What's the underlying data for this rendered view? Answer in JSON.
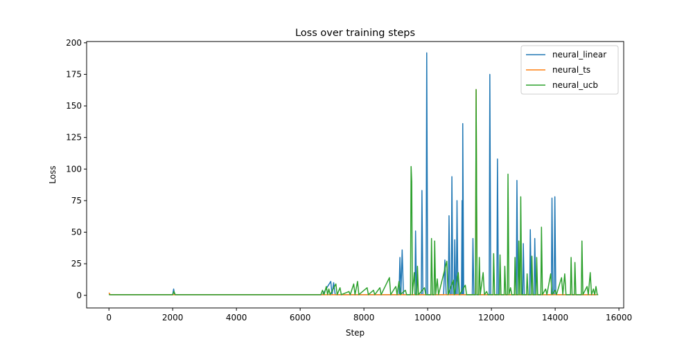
{
  "chart_data": {
    "type": "line",
    "title": "Loss over training steps",
    "xlabel": "Step",
    "ylabel": "Loss",
    "xlim": [
      -700,
      16150
    ],
    "ylim": [
      -10,
      201
    ],
    "x_ticks": [
      0,
      2000,
      4000,
      6000,
      8000,
      10000,
      12000,
      14000,
      16000
    ],
    "x_tick_labels": [
      "0",
      "2000",
      "4000",
      "6000",
      "8000",
      "10000",
      "12000",
      "14000",
      "16000"
    ],
    "y_ticks": [
      0,
      25,
      50,
      75,
      100,
      125,
      150,
      175,
      200
    ],
    "y_tick_labels": [
      "0",
      "25",
      "50",
      "75",
      "100",
      "125",
      "150",
      "175",
      "200"
    ],
    "grid": false,
    "legend_position": "top-right",
    "series": [
      {
        "name": "neural_linear",
        "color": "#1f77b4",
        "points": [
          [
            0,
            1
          ],
          [
            40,
            0.5
          ],
          [
            2000,
            0.5
          ],
          [
            2030,
            5
          ],
          [
            2060,
            0.5
          ],
          [
            6700,
            0.5
          ],
          [
            6960,
            11
          ],
          [
            7000,
            0.5
          ],
          [
            7050,
            10
          ],
          [
            7100,
            0.5
          ],
          [
            9100,
            0.5
          ],
          [
            9130,
            30
          ],
          [
            9160,
            0.5
          ],
          [
            9200,
            36
          ],
          [
            9240,
            0.5
          ],
          [
            9600,
            0.5
          ],
          [
            9620,
            51
          ],
          [
            9650,
            0.5
          ],
          [
            9800,
            0.5
          ],
          [
            9820,
            83
          ],
          [
            9850,
            0.5
          ],
          [
            9950,
            0.5
          ],
          [
            9970,
            192
          ],
          [
            10000,
            0.5
          ],
          [
            10500,
            0.5
          ],
          [
            10540,
            28
          ],
          [
            10580,
            0.5
          ],
          [
            10650,
            0.5
          ],
          [
            10670,
            63
          ],
          [
            10700,
            0.5
          ],
          [
            10740,
            0.5
          ],
          [
            10760,
            94
          ],
          [
            10790,
            0.5
          ],
          [
            10830,
            0.5
          ],
          [
            10850,
            44
          ],
          [
            10880,
            0.5
          ],
          [
            10900,
            0.5
          ],
          [
            10920,
            75
          ],
          [
            10950,
            0.5
          ],
          [
            11060,
            0.5
          ],
          [
            11080,
            75
          ],
          [
            11095,
            0.5
          ],
          [
            11100,
            136
          ],
          [
            11130,
            0.5
          ],
          [
            11400,
            0.5
          ],
          [
            11420,
            45
          ],
          [
            11450,
            0.5
          ],
          [
            11930,
            0.5
          ],
          [
            11950,
            175
          ],
          [
            11980,
            0.5
          ],
          [
            12170,
            0.5
          ],
          [
            12190,
            108
          ],
          [
            12220,
            0.5
          ],
          [
            12780,
            0.5
          ],
          [
            12800,
            91
          ],
          [
            12830,
            0.5
          ],
          [
            12980,
            0.5
          ],
          [
            13000,
            41
          ],
          [
            13030,
            0.5
          ],
          [
            13200,
            0.5
          ],
          [
            13220,
            52
          ],
          [
            13250,
            0.5
          ],
          [
            13340,
            0.5
          ],
          [
            13360,
            45
          ],
          [
            13390,
            0.5
          ],
          [
            13880,
            0.5
          ],
          [
            13900,
            77
          ],
          [
            13930,
            0.5
          ],
          [
            13970,
            0.5
          ],
          [
            13990,
            78
          ],
          [
            14020,
            0.5
          ],
          [
            15300,
            0.5
          ]
        ]
      },
      {
        "name": "neural_ts",
        "color": "#ff7f0e",
        "points": [
          [
            0,
            2
          ],
          [
            40,
            0.5
          ],
          [
            11500,
            0.5
          ],
          [
            11520,
            163
          ],
          [
            11550,
            0.5
          ],
          [
            15300,
            0.5
          ]
        ]
      },
      {
        "name": "neural_ucb",
        "color": "#2ca02c",
        "points": [
          [
            0,
            0.5
          ],
          [
            2000,
            0.5
          ],
          [
            2040,
            3
          ],
          [
            2080,
            0.5
          ],
          [
            6650,
            0.5
          ],
          [
            6700,
            4
          ],
          [
            6750,
            0.5
          ],
          [
            6820,
            7
          ],
          [
            6860,
            0.5
          ],
          [
            6900,
            5
          ],
          [
            6940,
            0.5
          ],
          [
            7120,
            9
          ],
          [
            7160,
            0.5
          ],
          [
            7250,
            6
          ],
          [
            7290,
            0.5
          ],
          [
            7530,
            3
          ],
          [
            7570,
            0.5
          ],
          [
            7680,
            9
          ],
          [
            7720,
            0.5
          ],
          [
            7800,
            11
          ],
          [
            7840,
            0.5
          ],
          [
            8100,
            6
          ],
          [
            8140,
            0.5
          ],
          [
            8300,
            4
          ],
          [
            8340,
            0.5
          ],
          [
            8500,
            6
          ],
          [
            8540,
            0.5
          ],
          [
            8800,
            14
          ],
          [
            8840,
            0.5
          ],
          [
            9000,
            7
          ],
          [
            9040,
            0.5
          ],
          [
            9100,
            11
          ],
          [
            9140,
            0.5
          ],
          [
            9300,
            4
          ],
          [
            9340,
            0.5
          ],
          [
            9460,
            0.5
          ],
          [
            9480,
            102
          ],
          [
            9500,
            90
          ],
          [
            9520,
            0.5
          ],
          [
            9580,
            18
          ],
          [
            9610,
            0.5
          ],
          [
            9660,
            0.5
          ],
          [
            9680,
            23
          ],
          [
            9710,
            0.5
          ],
          [
            9900,
            6
          ],
          [
            9940,
            0.5
          ],
          [
            10100,
            0.5
          ],
          [
            10120,
            45
          ],
          [
            10150,
            0.5
          ],
          [
            10200,
            0.5
          ],
          [
            10220,
            43
          ],
          [
            10250,
            0.5
          ],
          [
            10300,
            13
          ],
          [
            10340,
            0.5
          ],
          [
            10600,
            27
          ],
          [
            10640,
            0.5
          ],
          [
            10800,
            12
          ],
          [
            10840,
            0.5
          ],
          [
            10960,
            18
          ],
          [
            11000,
            0.5
          ],
          [
            11180,
            8
          ],
          [
            11220,
            0.5
          ],
          [
            11500,
            0.5
          ],
          [
            11520,
            163
          ],
          [
            11550,
            0.5
          ],
          [
            11600,
            0.5
          ],
          [
            11620,
            30
          ],
          [
            11650,
            0.5
          ],
          [
            11740,
            18
          ],
          [
            11780,
            0.5
          ],
          [
            11850,
            3
          ],
          [
            11890,
            0.5
          ],
          [
            12050,
            0.5
          ],
          [
            12070,
            33
          ],
          [
            12100,
            0.5
          ],
          [
            12250,
            0.5
          ],
          [
            12270,
            32
          ],
          [
            12300,
            0.5
          ],
          [
            12400,
            0.5
          ],
          [
            12420,
            23
          ],
          [
            12450,
            0.5
          ],
          [
            12500,
            0.5
          ],
          [
            12520,
            96
          ],
          [
            12550,
            0.5
          ],
          [
            12600,
            6
          ],
          [
            12640,
            0.5
          ],
          [
            12720,
            0.5
          ],
          [
            12740,
            30
          ],
          [
            12770,
            0.5
          ],
          [
            12840,
            0.5
          ],
          [
            12860,
            43
          ],
          [
            12890,
            0.5
          ],
          [
            12900,
            0.5
          ],
          [
            12920,
            78
          ],
          [
            12950,
            0.5
          ],
          [
            13100,
            0.5
          ],
          [
            13120,
            17
          ],
          [
            13150,
            0.5
          ],
          [
            13250,
            0.5
          ],
          [
            13270,
            31
          ],
          [
            13300,
            0.5
          ],
          [
            13400,
            0.5
          ],
          [
            13420,
            30
          ],
          [
            13450,
            0.5
          ],
          [
            13550,
            0.5
          ],
          [
            13570,
            54
          ],
          [
            13600,
            0.5
          ],
          [
            13700,
            5
          ],
          [
            13740,
            0.5
          ],
          [
            13860,
            17
          ],
          [
            13900,
            0.5
          ],
          [
            14000,
            4
          ],
          [
            14040,
            0.5
          ],
          [
            14200,
            14
          ],
          [
            14240,
            0.5
          ],
          [
            14300,
            17
          ],
          [
            14340,
            0.5
          ],
          [
            14480,
            0.5
          ],
          [
            14500,
            30
          ],
          [
            14530,
            0.5
          ],
          [
            14600,
            0.5
          ],
          [
            14620,
            26
          ],
          [
            14650,
            0.5
          ],
          [
            14820,
            0.5
          ],
          [
            14840,
            43
          ],
          [
            14870,
            0.5
          ],
          [
            15000,
            7
          ],
          [
            15040,
            0.5
          ],
          [
            15100,
            18
          ],
          [
            15140,
            0.5
          ],
          [
            15200,
            5
          ],
          [
            15240,
            0.5
          ],
          [
            15280,
            7
          ],
          [
            15320,
            0.5
          ],
          [
            15350,
            0.5
          ]
        ]
      }
    ]
  }
}
